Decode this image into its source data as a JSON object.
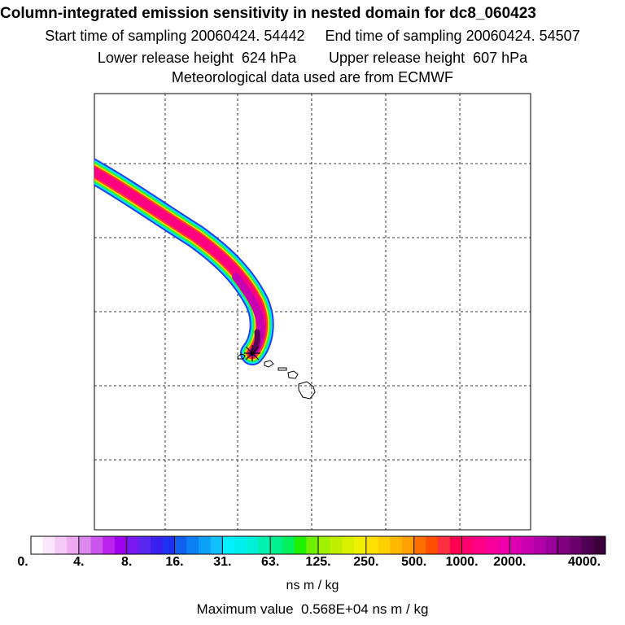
{
  "title": "Column-integrated emission sensitivity in nested domain for dc8_060423",
  "subtitle_sampling": "Start time of sampling 20060424. 54442     End time of sampling 20060424. 54507",
  "subtitle_release": "Lower release height  624 hPa        Upper release height  607 hPa",
  "subtitle_met": "Meteorological data used are from ECMWF",
  "chart_data": {
    "type": "heatmap",
    "description_units": "ns m / kg",
    "colorbar": {
      "tick_labels": [
        "0.",
        "4.",
        "8.",
        "16.",
        "31.",
        "63.",
        "125.",
        "250.",
        "500.",
        "1000.",
        "2000.",
        "4000."
      ],
      "colors": [
        [
          "#ffffff",
          "#fbe6fb",
          "#f5c9f5",
          "#eeaaf0"
        ],
        [
          "#dd88ee",
          "#cc55ee",
          "#bb22ee",
          "#a000f0"
        ],
        [
          "#7a1af0",
          "#5a28f0",
          "#3a20ee",
          "#2030f0"
        ],
        [
          "#1060f0",
          "#0a80f4",
          "#0aa0f8",
          "#10c0fa"
        ],
        [
          "#00f0ff",
          "#00f0f0",
          "#00f0d8",
          "#00f0b0"
        ],
        [
          "#00f090",
          "#00f060",
          "#20f000",
          "#70f000"
        ],
        [
          "#a0f000",
          "#c0f000",
          "#d8f000",
          "#f0f000"
        ],
        [
          "#ffe000",
          "#ffd000",
          "#ffb800",
          "#ffa000"
        ],
        [
          "#ff7000",
          "#ff5000",
          "#ff3040",
          "#ff0050"
        ],
        [
          "#ff0070",
          "#ff0088",
          "#f8009a",
          "#ee00a8"
        ],
        [
          "#dd00b0",
          "#c800b0",
          "#b000a8",
          "#9a0098"
        ],
        [
          "#800080",
          "#6a006a",
          "#500050",
          "#3a003a"
        ]
      ]
    },
    "max_value_text": "Maximum value  0.568E+04 ns m / kg",
    "plume_track": [
      [
        0.0,
        0.1
      ],
      [
        0.1,
        0.2
      ],
      [
        0.22,
        0.32
      ],
      [
        0.32,
        0.42
      ],
      [
        0.38,
        0.52
      ],
      [
        0.39,
        0.6
      ]
    ],
    "receptor_marker": "star",
    "grid": "dashed 6x6",
    "landmass": "Hawaiian Islands"
  },
  "units_label": "ns m / kg",
  "icons": {
    "receptor": "receptor-star-icon",
    "islands": "hawaii-islands-icon"
  }
}
